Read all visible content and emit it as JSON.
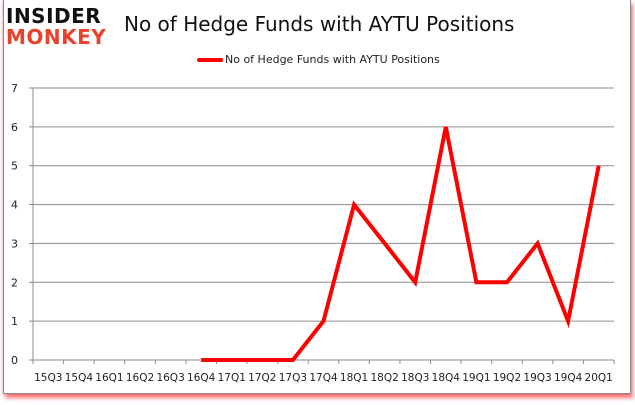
{
  "header": {
    "logo_line1": "INSIDER",
    "logo_line2": "MONKEY",
    "title": "No of Hedge Funds with AYTU Positions"
  },
  "legend": {
    "label": "No of Hedge Funds with AYTU Positions",
    "color": "#ff0000"
  },
  "colors": {
    "line": "#ff0000",
    "grid": "#8c8c8c",
    "logo_accent": "#e8412c"
  },
  "chart_data": {
    "type": "line",
    "title": "No of Hedge Funds with AYTU Positions",
    "xlabel": "",
    "ylabel": "",
    "categories": [
      "15Q3",
      "15Q4",
      "16Q1",
      "16Q2",
      "16Q3",
      "16Q4",
      "17Q1",
      "17Q2",
      "17Q3",
      "17Q4",
      "18Q1",
      "18Q2",
      "18Q3",
      "18Q4",
      "19Q1",
      "19Q2",
      "19Q3",
      "19Q4",
      "20Q1"
    ],
    "series": [
      {
        "name": "No of Hedge Funds with AYTU Positions",
        "values": [
          null,
          null,
          null,
          null,
          null,
          0,
          0,
          0,
          0,
          1,
          4,
          3,
          2,
          6,
          2,
          2,
          3,
          1,
          5
        ]
      }
    ],
    "ylim": [
      0,
      7
    ],
    "yticks": [
      0,
      1,
      2,
      3,
      4,
      5,
      6,
      7
    ],
    "grid": true,
    "legend_position": "top"
  }
}
